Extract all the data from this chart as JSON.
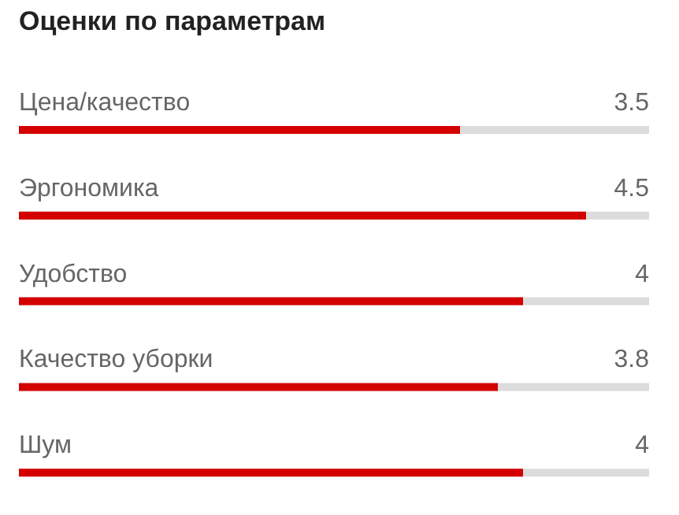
{
  "chart_data": {
    "type": "bar",
    "orientation": "horizontal",
    "title": "Оценки по параметрам",
    "categories": [
      "Цена/качество",
      "Эргономика",
      "Удобство",
      "Качество уборки",
      "Шум"
    ],
    "values": [
      3.5,
      4.5,
      4,
      3.8,
      4
    ],
    "color": "#d40000",
    "xlim": [
      0,
      5
    ],
    "data_labels": true
  }
}
